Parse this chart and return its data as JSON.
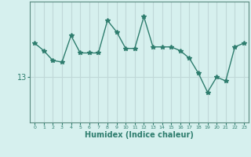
{
  "x": [
    0,
    1,
    2,
    3,
    4,
    5,
    6,
    7,
    8,
    9,
    10,
    11,
    12,
    13,
    14,
    15,
    16,
    17,
    18,
    19,
    20,
    21,
    22,
    23
  ],
  "y": [
    17.5,
    16.5,
    15.2,
    15.0,
    18.5,
    16.2,
    16.2,
    16.2,
    20.5,
    19.0,
    16.8,
    16.8,
    21.0,
    17.0,
    17.0,
    17.0,
    16.5,
    15.5,
    13.5,
    11.0,
    13.0,
    12.5,
    17.0,
    17.5
  ],
  "line_color": "#2e7d6e",
  "marker": "*",
  "bg_color": "#d6f0ee",
  "grid_color": "#c0d8d8",
  "spine_color": "#5a8a80",
  "xlabel": "Humidex (Indice chaleur)",
  "ytick_label": "13",
  "ytick_value": 13,
  "xlim": [
    -0.5,
    23.5
  ],
  "ylim": [
    7,
    23
  ]
}
